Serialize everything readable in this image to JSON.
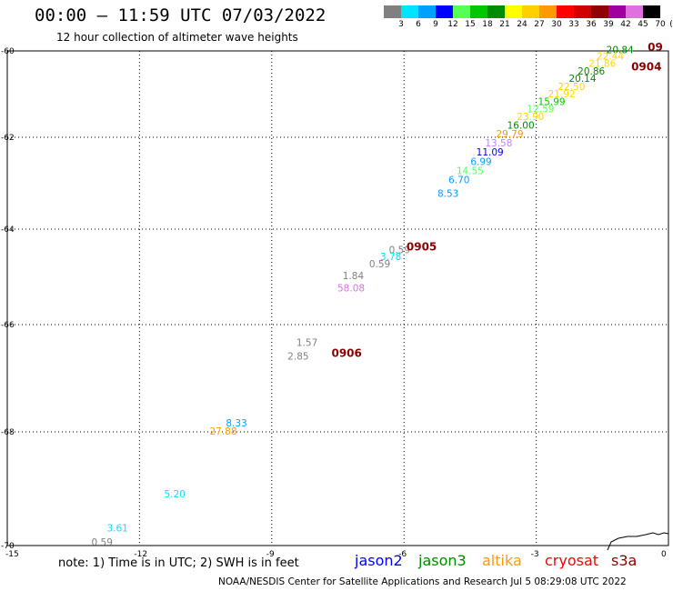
{
  "title": "00:00 – 11:59 UTC 07/03/2022",
  "subtitle": "12 hour collection of altimeter wave heights",
  "colorbar": {
    "units": "(ft)",
    "bins": [
      {
        "label": "3",
        "color": "#808080"
      },
      {
        "label": "6",
        "color": "#00e5ff"
      },
      {
        "label": "9",
        "color": "#00a0ff"
      },
      {
        "label": "12",
        "color": "#0000ff"
      },
      {
        "label": "15",
        "color": "#55ff55"
      },
      {
        "label": "18",
        "color": "#00c800"
      },
      {
        "label": "21",
        "color": "#008c00"
      },
      {
        "label": "24",
        "color": "#ffff00"
      },
      {
        "label": "27",
        "color": "#ffd000"
      },
      {
        "label": "30",
        "color": "#ff9900"
      },
      {
        "label": "33",
        "color": "#ff0000"
      },
      {
        "label": "36",
        "color": "#d00000"
      },
      {
        "label": "39",
        "color": "#900000"
      },
      {
        "label": "42",
        "color": "#a000a0"
      },
      {
        "label": "45",
        "color": "#e070e0"
      },
      {
        "label": "70",
        "color": "#000000"
      }
    ]
  },
  "axes": {
    "x_ticks": [
      "-15",
      "-12",
      "-9",
      "-6",
      "-3",
      "0"
    ],
    "y_ticks": [
      "-60",
      "-62",
      "-64",
      "-66",
      "-68",
      "-70"
    ],
    "xlim": [
      -15,
      0
    ],
    "ylim": [
      -70,
      -60
    ],
    "grid": "dotted"
  },
  "observations": [
    {
      "lon": -1.1,
      "lat": -60.05,
      "value": "20.84",
      "color": "#008c00"
    },
    {
      "lon": -1.32,
      "lat": -60.2,
      "value": "22.44",
      "color": "#ffd700"
    },
    {
      "lon": -1.5,
      "lat": -60.37,
      "value": "21.86",
      "color": "#ffd700"
    },
    {
      "lon": -1.75,
      "lat": -60.55,
      "value": "20.86",
      "color": "#008c00"
    },
    {
      "lon": -1.95,
      "lat": -60.72,
      "value": "20.14",
      "color": "#008c00"
    },
    {
      "lon": -2.2,
      "lat": -60.9,
      "value": "22.50",
      "color": "#ffd700"
    },
    {
      "lon": -2.42,
      "lat": -61.07,
      "value": "21.92",
      "color": "#ffd700"
    },
    {
      "lon": -2.65,
      "lat": -61.25,
      "value": "15.99",
      "color": "#00c800"
    },
    {
      "lon": -2.9,
      "lat": -61.42,
      "value": "12.59",
      "color": "#55ff55"
    },
    {
      "lon": -3.13,
      "lat": -61.6,
      "value": "23.90",
      "color": "#ffd700"
    },
    {
      "lon": -3.35,
      "lat": -61.8,
      "value": "16.00",
      "color": "#008c00"
    },
    {
      "lon": -3.6,
      "lat": -62.0,
      "value": "29.79",
      "color": "#ff9900"
    },
    {
      "lon": -3.85,
      "lat": -62.2,
      "value": "13.58",
      "color": "#c080ff"
    },
    {
      "lon": -4.05,
      "lat": -62.4,
      "value": "11.09",
      "color": "#0000ff"
    },
    {
      "lon": -4.25,
      "lat": -62.6,
      "value": "6.99",
      "color": "#00a0ff"
    },
    {
      "lon": -4.5,
      "lat": -62.8,
      "value": "14.55",
      "color": "#55ff55"
    },
    {
      "lon": -4.75,
      "lat": -63.0,
      "value": "6.70",
      "color": "#00a0ff"
    },
    {
      "lon": -5.0,
      "lat": -63.3,
      "value": "8.53",
      "color": "#00a0ff"
    },
    {
      "lon": -6.1,
      "lat": -64.5,
      "value": "0.59",
      "color": "#808080"
    },
    {
      "lon": -6.3,
      "lat": -64.65,
      "value": "3.78",
      "color": "#00e5ff"
    },
    {
      "lon": -6.55,
      "lat": -64.8,
      "value": "0.59",
      "color": "#808080"
    },
    {
      "lon": -7.15,
      "lat": -65.05,
      "value": "1.84",
      "color": "#808080"
    },
    {
      "lon": -7.2,
      "lat": -65.3,
      "value": "58.08",
      "color": "#e070e0"
    },
    {
      "lon": -8.2,
      "lat": -66.4,
      "value": "1.57",
      "color": "#808080"
    },
    {
      "lon": -8.4,
      "lat": -66.65,
      "value": "2.85",
      "color": "#808080"
    },
    {
      "lon": -9.8,
      "lat": -67.9,
      "value": "8.33",
      "color": "#00a0ff"
    },
    {
      "lon": -10.1,
      "lat": -68.05,
      "value": "27.88",
      "color": "#ff9900"
    },
    {
      "lon": -11.2,
      "lat": -69.15,
      "value": "5.20",
      "color": "#00e5ff"
    },
    {
      "lon": -12.5,
      "lat": -69.75,
      "value": "3.61",
      "color": "#00e5ff"
    },
    {
      "lon": -12.85,
      "lat": -70.0,
      "value": "0.59",
      "color": "#808080"
    }
  ],
  "date_labels": [
    {
      "lon": -0.3,
      "lat": -59.98,
      "text": "09"
    },
    {
      "lon": -0.5,
      "lat": -60.45,
      "text": "0904"
    },
    {
      "lon": -5.6,
      "lat": -64.45,
      "text": "0905"
    },
    {
      "lon": -7.3,
      "lat": -66.6,
      "text": "0906"
    }
  ],
  "note": "note: 1) Time is in UTC; 2) SWH is in feet",
  "satellites": [
    {
      "name": "jason2",
      "color": "#0000ff"
    },
    {
      "name": "jason3",
      "color": "#008c00"
    },
    {
      "name": "altika",
      "color": "#ff9900"
    },
    {
      "name": "cryosat",
      "color": "#ff0000"
    },
    {
      "name": "s3a",
      "color": "#8b0000"
    }
  ],
  "credit": "NOAA/NESDIS Center for Satellite Applications and Research    Jul  5 08:29:08 UTC 2022"
}
